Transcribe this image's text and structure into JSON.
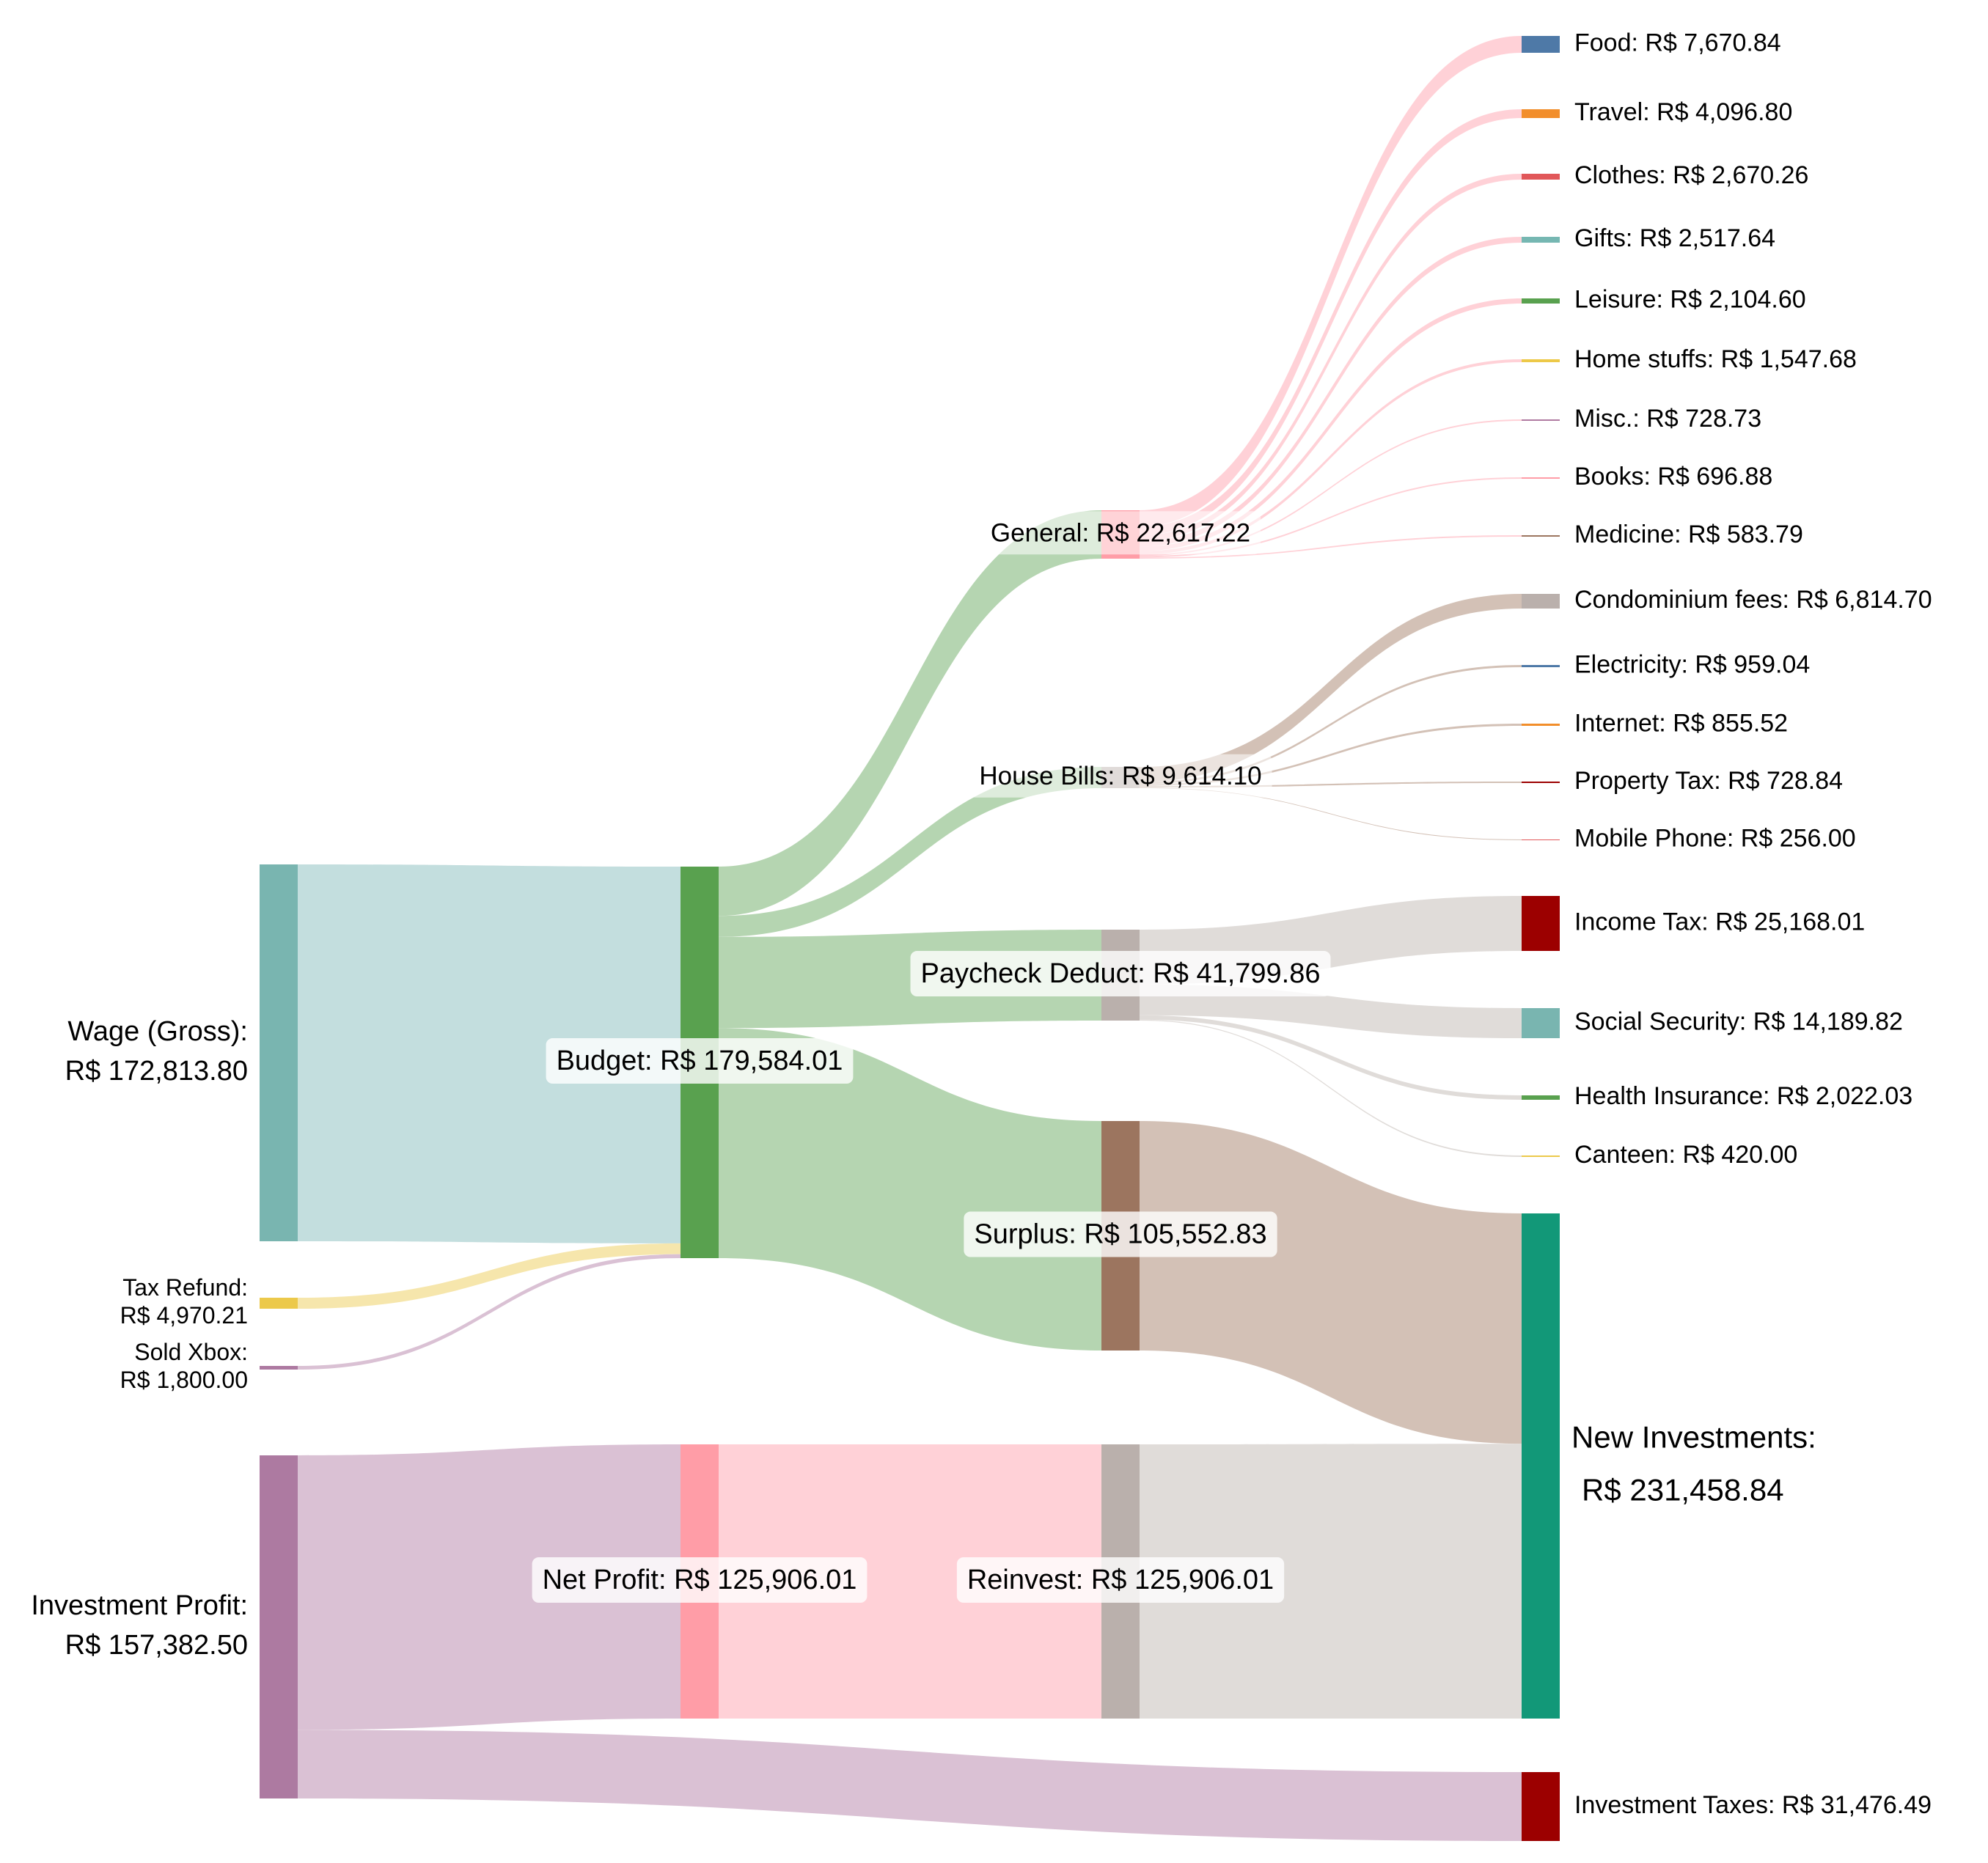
{
  "chart_data": {
    "type": "sankey",
    "title": "",
    "currency": "R$",
    "nodes": [
      {
        "id": "wage",
        "label": "Wage (Gross):",
        "value_text": "R$ 172,813.80",
        "value": 172813.8,
        "color": "#79b5b0"
      },
      {
        "id": "tax_refund",
        "label": "Tax Refund:",
        "value_text": "R$ 4,970.21",
        "value": 4970.21,
        "color": "#ecc94b"
      },
      {
        "id": "sold_xbox",
        "label": "Sold Xbox:",
        "value_text": "R$ 1,800.00",
        "value": 1800.0,
        "color": "#ad7aa1"
      },
      {
        "id": "investment_profit",
        "label": "Investment Profit:",
        "value_text": "R$ 157,382.50",
        "value": 157382.5,
        "color": "#ad7aa1"
      },
      {
        "id": "budget",
        "label": "Budget: R$ 179,584.01",
        "value": 179584.01,
        "color": "#59a14f"
      },
      {
        "id": "net_profit",
        "label": "Net Profit: R$ 125,906.01",
        "value": 125906.01,
        "color": "#ff9da7"
      },
      {
        "id": "general",
        "label": "General: R$ 22,617.22",
        "value": 22617.22,
        "color": "#ff9da7"
      },
      {
        "id": "house_bills",
        "label": "House Bills: R$ 9,614.10",
        "value": 9614.1,
        "color": "#bab0ac"
      },
      {
        "id": "paycheck_deduct",
        "label": "Paycheck Deduct: R$ 41,799.86",
        "value": 41799.86,
        "color": "#bab0ac"
      },
      {
        "id": "surplus",
        "label": "Surplus: R$ 105,552.83",
        "value": 105552.83,
        "color": "#9c755f"
      },
      {
        "id": "reinvest",
        "label": "Reinvest: R$ 125,906.01",
        "value": 125906.01,
        "color": "#bab0ac"
      },
      {
        "id": "food",
        "label": "Food: R$ 7,670.84",
        "value": 7670.84,
        "color": "#4e79a7"
      },
      {
        "id": "travel",
        "label": "Travel: R$ 4,096.80",
        "value": 4096.8,
        "color": "#f28e2b"
      },
      {
        "id": "clothes",
        "label": "Clothes: R$ 2,670.26",
        "value": 2670.26,
        "color": "#e15759"
      },
      {
        "id": "gifts",
        "label": "Gifts: R$ 2,517.64",
        "value": 2517.64,
        "color": "#76b7b2"
      },
      {
        "id": "leisure",
        "label": "Leisure: R$ 2,104.60",
        "value": 2104.6,
        "color": "#59a14f"
      },
      {
        "id": "home_stuffs",
        "label": "Home stuffs: R$ 1,547.68",
        "value": 1547.68,
        "color": "#edc948"
      },
      {
        "id": "misc",
        "label": "Misc.: R$ 728.73",
        "value": 728.73,
        "color": "#b07aa1"
      },
      {
        "id": "books",
        "label": "Books: R$ 696.88",
        "value": 696.88,
        "color": "#ff9da7"
      },
      {
        "id": "medicine",
        "label": "Medicine: R$ 583.79",
        "value": 583.79,
        "color": "#9c755f"
      },
      {
        "id": "condominium",
        "label": "Condominium fees: R$ 6,814.70",
        "value": 6814.7,
        "color": "#bab0ac"
      },
      {
        "id": "electricity",
        "label": "Electricity: R$ 959.04",
        "value": 959.04,
        "color": "#4e79a7"
      },
      {
        "id": "internet",
        "label": "Internet: R$ 855.52",
        "value": 855.52,
        "color": "#f28e2b"
      },
      {
        "id": "property_tax",
        "label": "Property Tax: R$ 728.84",
        "value": 728.84,
        "color": "#9c0000"
      },
      {
        "id": "mobile_phone",
        "label": "Mobile Phone: R$ 256.00",
        "value": 256.0,
        "color": "#e15759"
      },
      {
        "id": "income_tax",
        "label": "Income Tax: R$ 25,168.01",
        "value": 25168.01,
        "color": "#9c0000"
      },
      {
        "id": "social_security",
        "label": "Social Security: R$ 14,189.82",
        "value": 14189.82,
        "color": "#79b5b0"
      },
      {
        "id": "health_insurance",
        "label": "Health Insurance: R$ 2,022.03",
        "value": 2022.03,
        "color": "#59a14f"
      },
      {
        "id": "canteen",
        "label": "Canteen: R$ 420.00",
        "value": 420.0,
        "color": "#ecc94b"
      },
      {
        "id": "new_investments",
        "label": "New Investments:",
        "value_text": "R$ 231,458.84",
        "value": 231458.84,
        "color": "#129878"
      },
      {
        "id": "investment_taxes",
        "label": "Investment Taxes: R$ 31,476.49",
        "value": 31476.49,
        "color": "#9c0000"
      }
    ],
    "links": [
      {
        "source": "wage",
        "target": "budget",
        "value": 172813.8,
        "color": "#c3dede"
      },
      {
        "source": "tax_refund",
        "target": "budget",
        "value": 4970.21,
        "color": "#f6e6ac"
      },
      {
        "source": "sold_xbox",
        "target": "budget",
        "value": 1800.0,
        "color": "#dac1d4"
      },
      {
        "source": "investment_profit",
        "target": "net_profit",
        "value": 125906.01,
        "color": "#dac1d4"
      },
      {
        "source": "investment_profit",
        "target": "investment_taxes",
        "value": 31476.49,
        "color": "#dac1d4"
      },
      {
        "source": "budget",
        "target": "general",
        "value": 22617.22,
        "color": "#b5d5b1"
      },
      {
        "source": "budget",
        "target": "house_bills",
        "value": 9614.1,
        "color": "#b5d5b1"
      },
      {
        "source": "budget",
        "target": "paycheck_deduct",
        "value": 41799.86,
        "color": "#b5d5b1"
      },
      {
        "source": "budget",
        "target": "surplus",
        "value": 105552.83,
        "color": "#b5d5b1"
      },
      {
        "source": "net_profit",
        "target": "reinvest",
        "value": 125906.01,
        "color": "#ffd1d7"
      },
      {
        "source": "general",
        "target": "food",
        "value": 7670.84,
        "color": "#ffd1d7"
      },
      {
        "source": "general",
        "target": "travel",
        "value": 4096.8,
        "color": "#ffd1d7"
      },
      {
        "source": "general",
        "target": "clothes",
        "value": 2670.26,
        "color": "#ffd1d7"
      },
      {
        "source": "general",
        "target": "gifts",
        "value": 2517.64,
        "color": "#ffd1d7"
      },
      {
        "source": "general",
        "target": "leisure",
        "value": 2104.6,
        "color": "#ffd1d7"
      },
      {
        "source": "general",
        "target": "home_stuffs",
        "value": 1547.68,
        "color": "#ffd1d7"
      },
      {
        "source": "general",
        "target": "misc",
        "value": 728.73,
        "color": "#ffd1d7"
      },
      {
        "source": "general",
        "target": "books",
        "value": 696.88,
        "color": "#ffd1d7"
      },
      {
        "source": "general",
        "target": "medicine",
        "value": 583.79,
        "color": "#ffd1d7"
      },
      {
        "source": "house_bills",
        "target": "condominium",
        "value": 6814.7,
        "color": "#d3c1b6"
      },
      {
        "source": "house_bills",
        "target": "electricity",
        "value": 959.04,
        "color": "#d3c1b6"
      },
      {
        "source": "house_bills",
        "target": "internet",
        "value": 855.52,
        "color": "#d3c1b6"
      },
      {
        "source": "house_bills",
        "target": "property_tax",
        "value": 728.84,
        "color": "#d3c1b6"
      },
      {
        "source": "house_bills",
        "target": "mobile_phone",
        "value": 256.0,
        "color": "#d3c1b6"
      },
      {
        "source": "paycheck_deduct",
        "target": "income_tax",
        "value": 25168.01,
        "color": "#e0dcd9"
      },
      {
        "source": "paycheck_deduct",
        "target": "social_security",
        "value": 14189.82,
        "color": "#e0dcd9"
      },
      {
        "source": "paycheck_deduct",
        "target": "health_insurance",
        "value": 2022.03,
        "color": "#e0dcd9"
      },
      {
        "source": "paycheck_deduct",
        "target": "canteen",
        "value": 420.0,
        "color": "#e0dcd9"
      },
      {
        "source": "surplus",
        "target": "new_investments",
        "value": 105552.83,
        "color": "#d3c1b6"
      },
      {
        "source": "reinvest",
        "target": "new_investments",
        "value": 125906.01,
        "color": "#e0dcd9"
      }
    ]
  }
}
